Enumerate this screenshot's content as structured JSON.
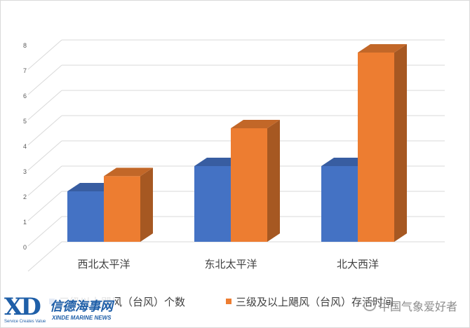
{
  "chart_data": {
    "type": "bar",
    "three_d": true,
    "categories": [
      "西北太平洋",
      "东北太平洋",
      "北大西洋"
    ],
    "series": [
      {
        "name": "三级以上飓风（台风）个数",
        "values": [
          2,
          3,
          3
        ],
        "color": "#4472C4"
      },
      {
        "name": "三级及以上飓风（台风）存活时间",
        "values": [
          2.6,
          4.5,
          7.5
        ],
        "color": "#ED7D31"
      }
    ],
    "yticks": [
      "0",
      "1",
      "2",
      "3",
      "4",
      "5",
      "6",
      "7",
      "8"
    ],
    "ylim": [
      0,
      8
    ],
    "grid": true,
    "legend_position": "bottom"
  },
  "logo": {
    "mark": "XD",
    "name_cn": "信德海事网",
    "slogan": "Service Creates Value",
    "name_en": "XINDE MARINE NEWS"
  },
  "watermark": {
    "text": "中国气象爱好者"
  }
}
